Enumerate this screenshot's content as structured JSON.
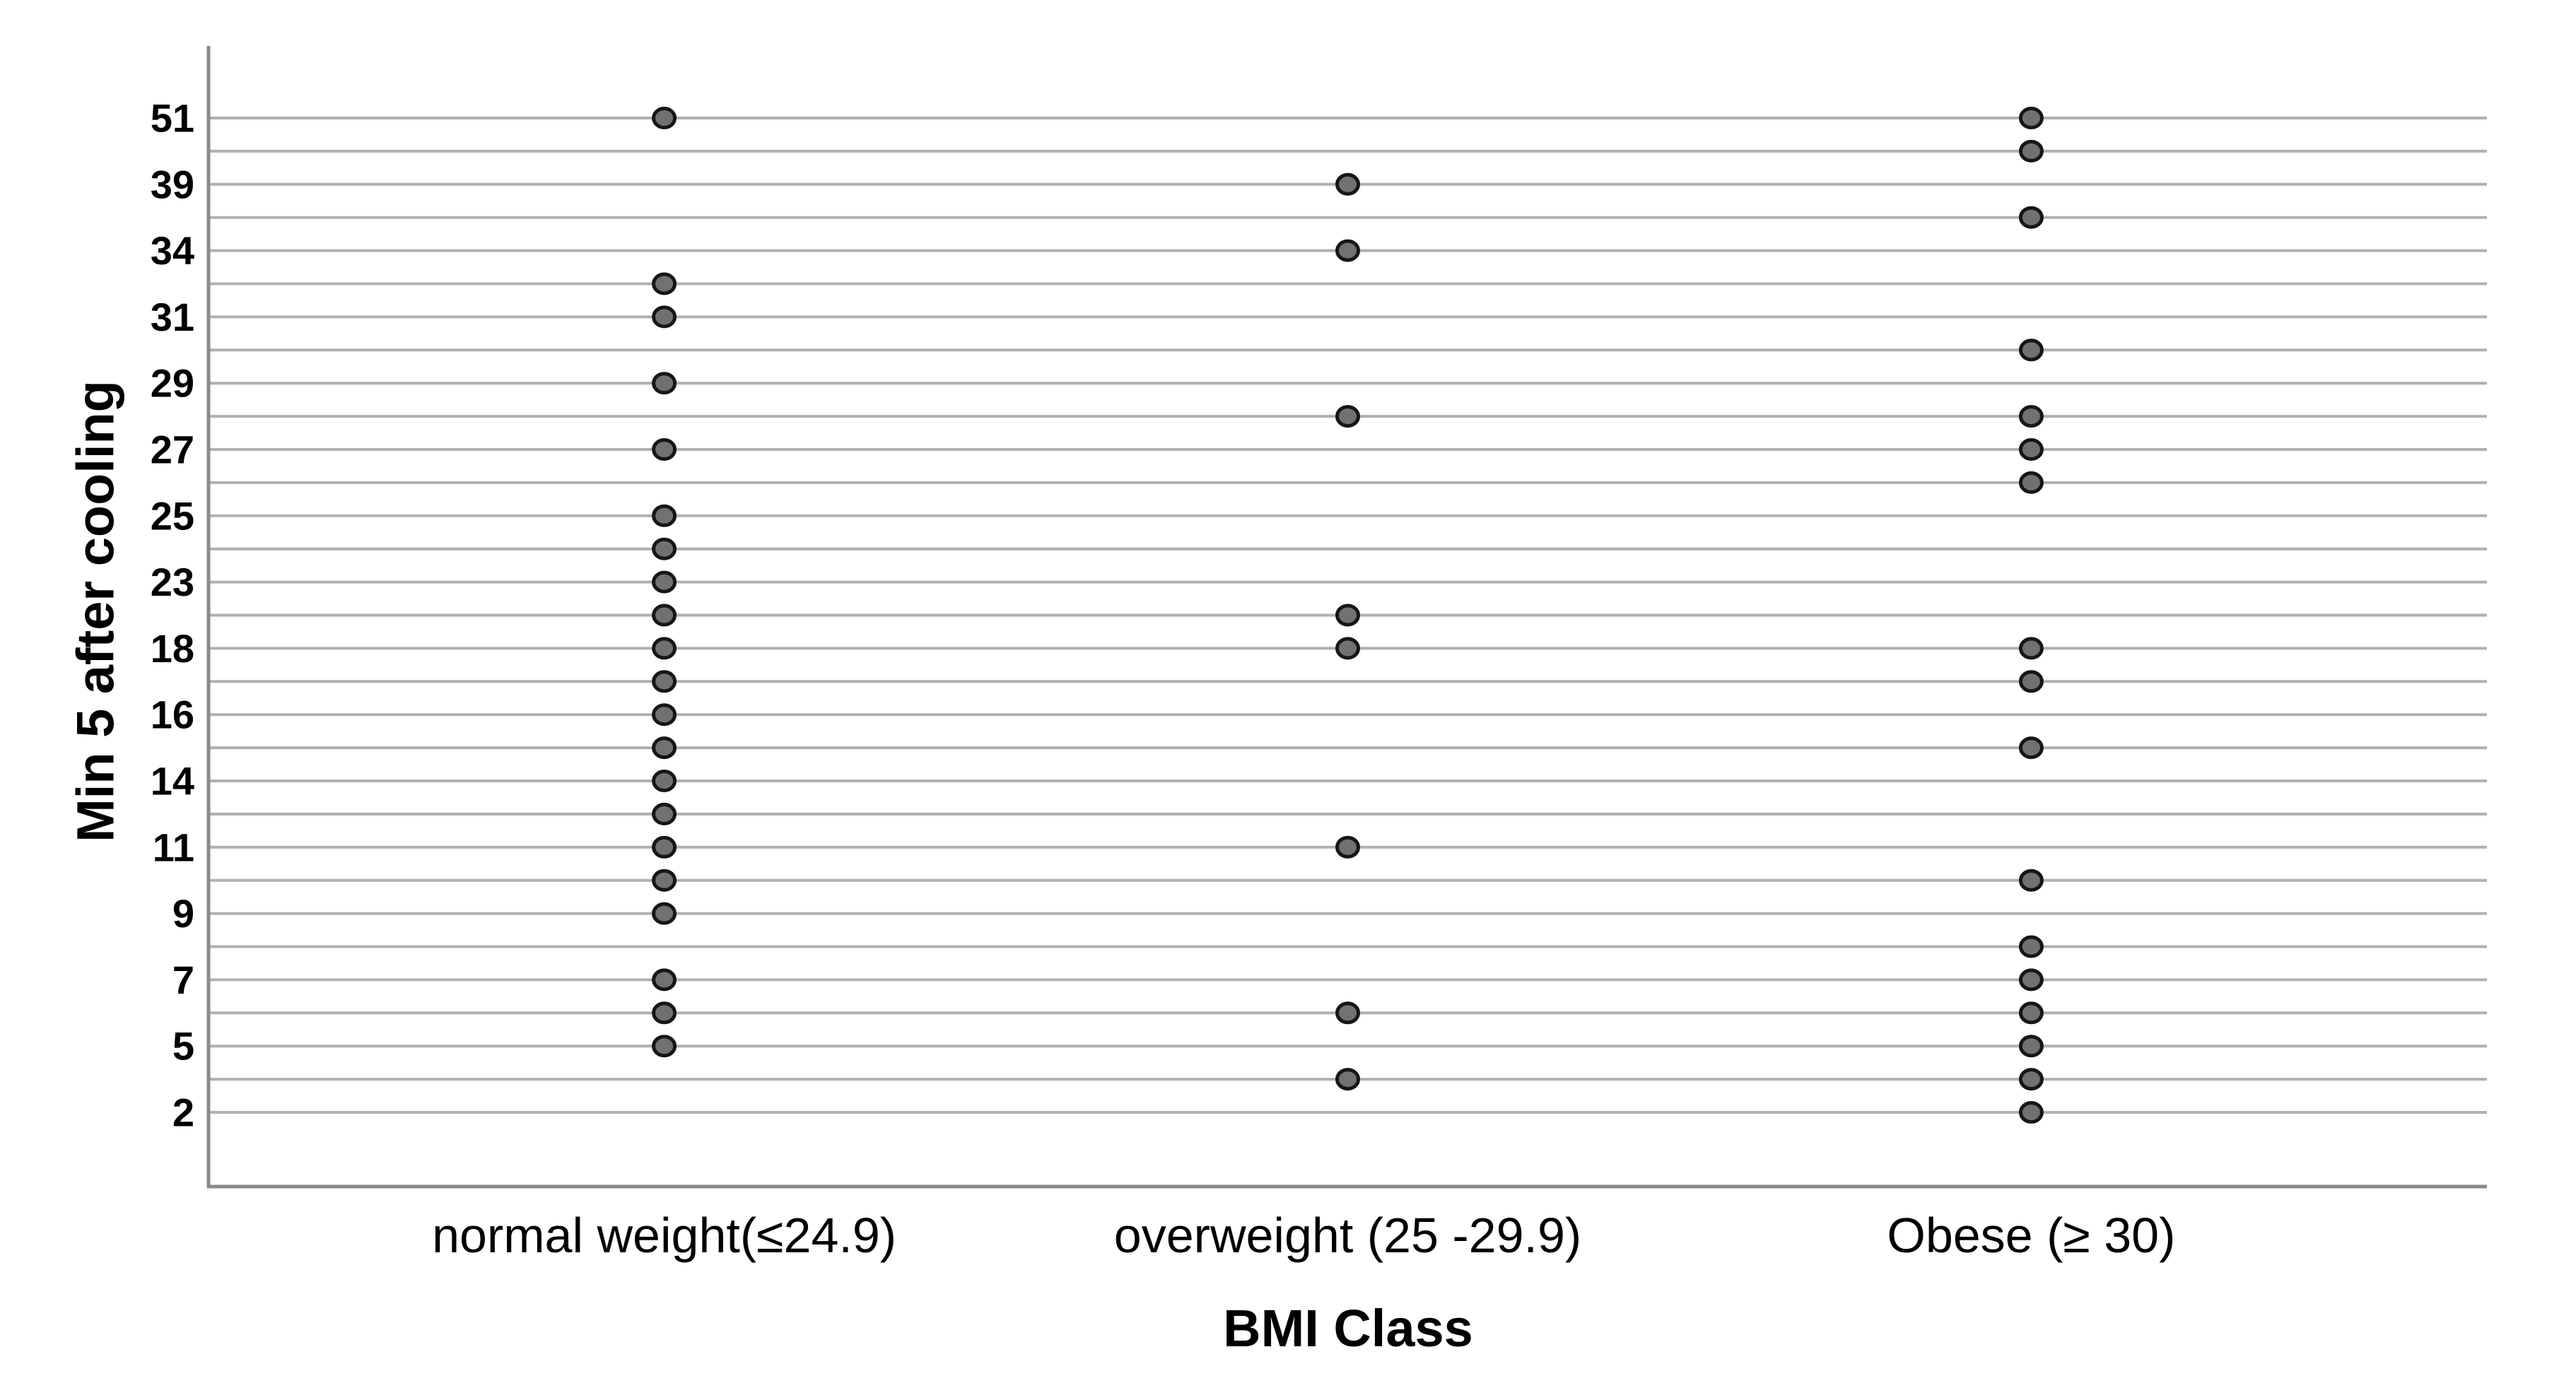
{
  "chart_data": {
    "type": "scatter",
    "subtype": "categorical-dot-plot",
    "title": "",
    "xlabel": "BMI Class",
    "ylabel": "Min 5 after cooling",
    "legend_position": "none",
    "grid": "horizontal gridline for every row, no top or right frame",
    "x_categories": [
      "normal weight(≤24.9)",
      "overweight (25 -29.9)",
      "Obese (≥ 30)"
    ],
    "y_axis_rows_top_to_bottom": [
      "51",
      "",
      "39",
      "",
      "34",
      "",
      "31",
      "",
      "29",
      "",
      "27",
      "",
      "25",
      "",
      "23",
      "",
      "18",
      "",
      "16",
      "",
      "14",
      "",
      "11",
      "",
      "9",
      "",
      "7",
      "",
      "5",
      "",
      "2"
    ],
    "y_tick_labels_visible": [
      "51",
      "39",
      "34",
      "31",
      "29",
      "27",
      "25",
      "23",
      "18",
      "16",
      "14",
      "11",
      "9",
      "7",
      "5",
      "2"
    ],
    "series": [
      {
        "name": "normal weight(≤24.9)",
        "dot_row_indices": [
          0,
          5,
          6,
          8,
          10,
          12,
          13,
          14,
          15,
          16,
          17,
          18,
          19,
          20,
          21,
          22,
          23,
          24,
          26,
          27,
          28
        ]
      },
      {
        "name": "overweight (25 -29.9)",
        "dot_row_indices": [
          2,
          4,
          9,
          15,
          16,
          22,
          27,
          29
        ]
      },
      {
        "name": "Obese (≥ 30)",
        "dot_row_indices": [
          0,
          1,
          3,
          7,
          9,
          10,
          11,
          16,
          17,
          19,
          23,
          25,
          26,
          27,
          28,
          29,
          30
        ]
      }
    ],
    "colors": {
      "dot_fill": "#717171",
      "dot_stroke": "#161616",
      "gridline": "#b0b0b0",
      "axis_line": "#8a8a8a",
      "text": "#000000",
      "background": "#ffffff"
    }
  }
}
